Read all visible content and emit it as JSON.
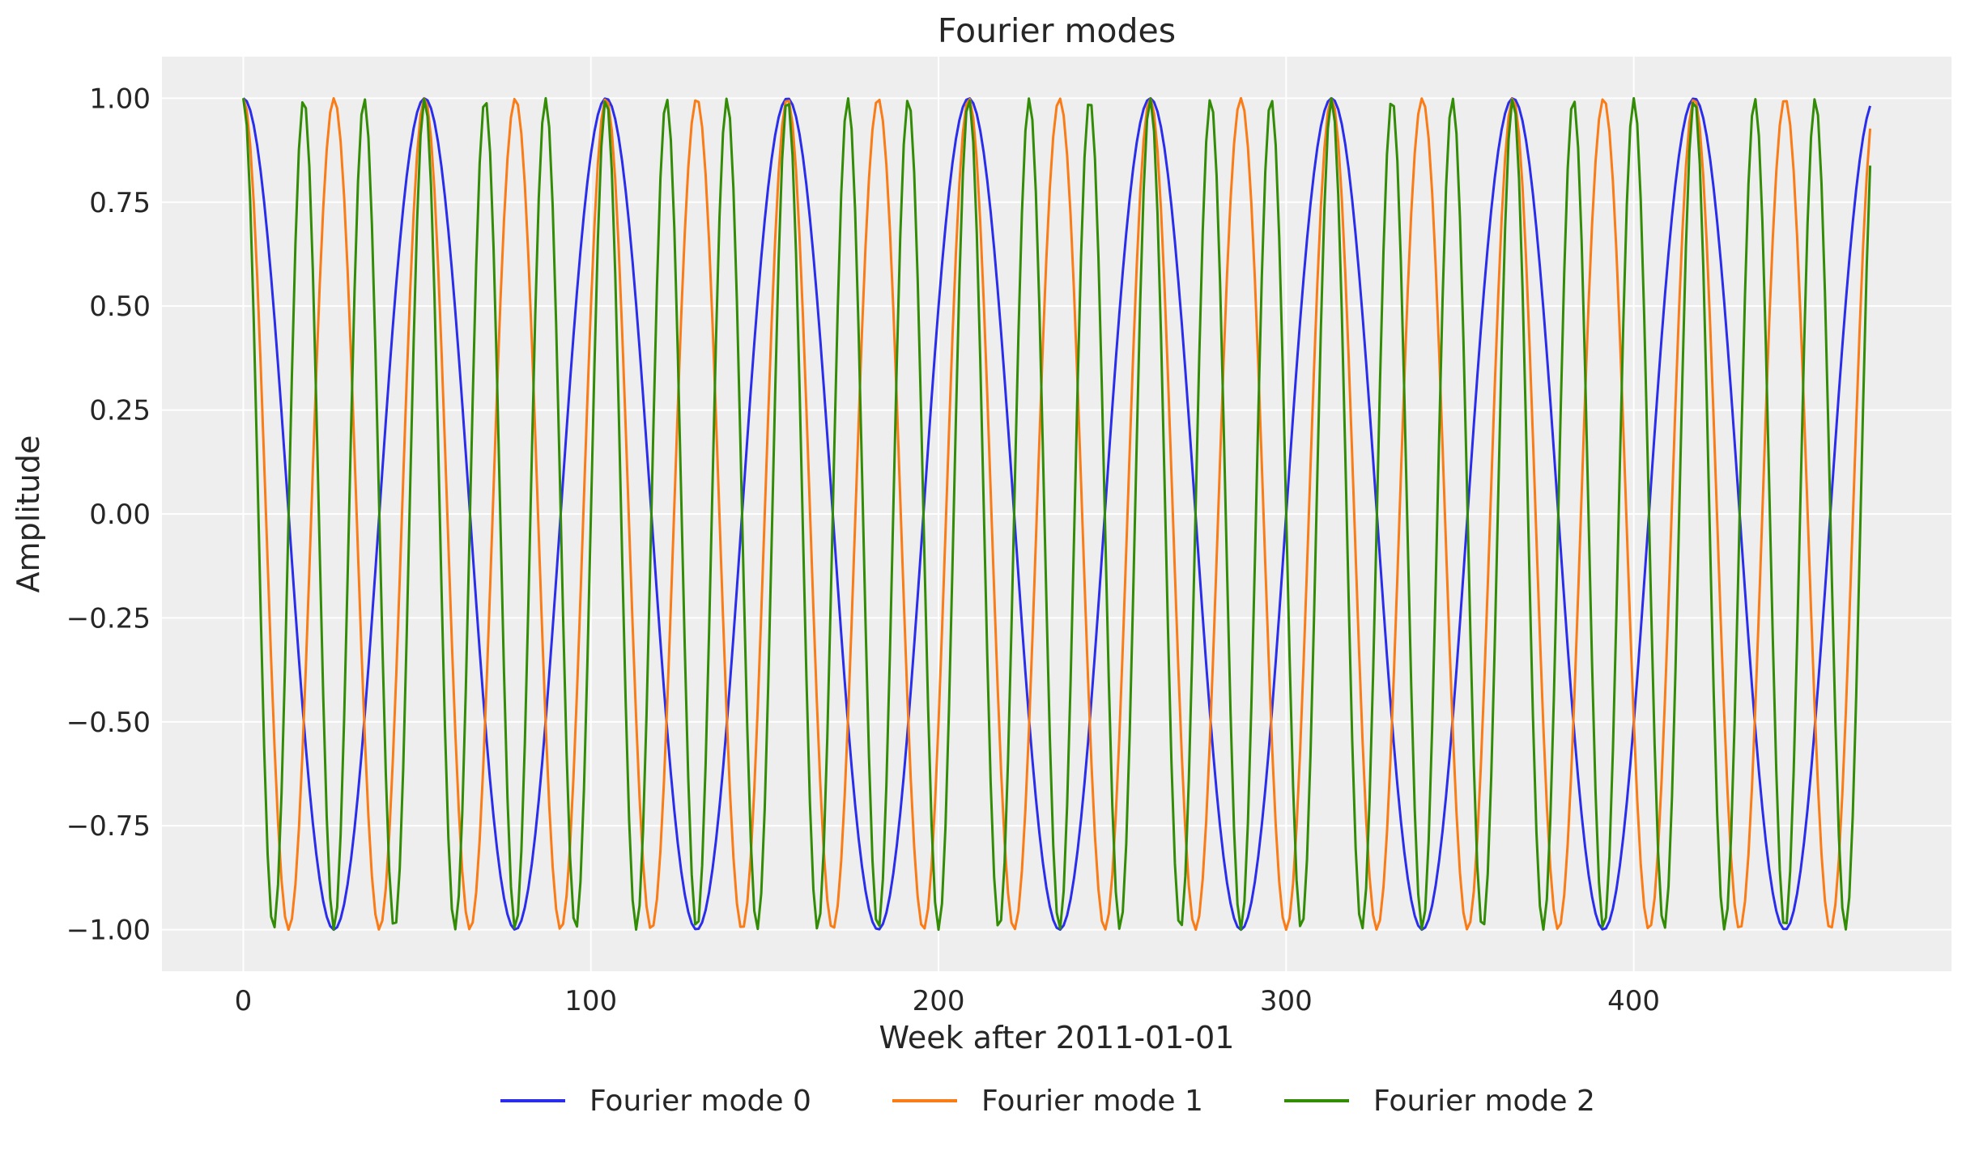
{
  "chart_data": {
    "type": "line",
    "title": "Fourier modes",
    "xlabel": "Week after 2011-01-01",
    "ylabel": "Amplitude",
    "xlim": [
      -23.4,
      491.4
    ],
    "ylim": [
      -1.1,
      1.1
    ],
    "grid": true,
    "legend_position": "bottom-center",
    "x_ticks": [
      0,
      100,
      200,
      300,
      400
    ],
    "x_tick_labels": [
      "0",
      "100",
      "200",
      "300",
      "400"
    ],
    "y_ticks": [
      1.0,
      0.75,
      0.5,
      0.25,
      0.0,
      -0.25,
      -0.5,
      -0.75,
      -1.0
    ],
    "y_tick_labels": [
      "1.00",
      "0.75",
      "0.50",
      "0.25",
      "0.00",
      "−0.25",
      "−0.50",
      "−0.75",
      "−1.00"
    ],
    "x_start": 0,
    "x_end": 468,
    "x_step": 1,
    "series": [
      {
        "name": "Fourier mode 0",
        "function": "cos",
        "period_weeks": 52.1775,
        "color": "#2a2eec"
      },
      {
        "name": "Fourier mode 1",
        "function": "cos",
        "period_weeks": 26.08875,
        "color": "#fa7c17"
      },
      {
        "name": "Fourier mode 2",
        "function": "cos",
        "period_weeks": 17.3925,
        "color": "#328c06"
      }
    ]
  }
}
